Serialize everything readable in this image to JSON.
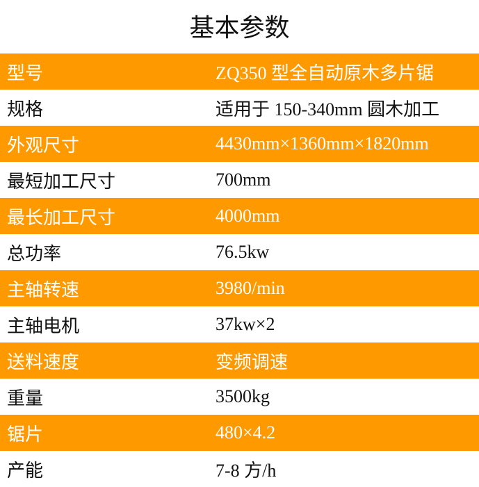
{
  "title": "基本参数",
  "accent_color": "#FF9900",
  "rows": [
    {
      "label": "型号",
      "value": "ZQ350 型全自动原木多片锯"
    },
    {
      "label": "规格",
      "value": "适用于 150-340mm 圆木加工"
    },
    {
      "label": "外观尺寸",
      "value": "4430mm×1360mm×1820mm"
    },
    {
      "label": "最短加工尺寸",
      "value": "700mm"
    },
    {
      "label": "最长加工尺寸",
      "value": "4000mm"
    },
    {
      "label": "总功率",
      "value": "76.5kw"
    },
    {
      "label": "主轴转速",
      "value": "3980/min"
    },
    {
      "label": "主轴电机",
      "value": "37kw×2"
    },
    {
      "label": "送料速度",
      "value": "变频调速"
    },
    {
      "label": "重量",
      "value": "3500kg"
    },
    {
      "label": "锯片",
      "value": "480×4.2"
    },
    {
      "label": "产能",
      "value": "7-8 方/h"
    }
  ]
}
